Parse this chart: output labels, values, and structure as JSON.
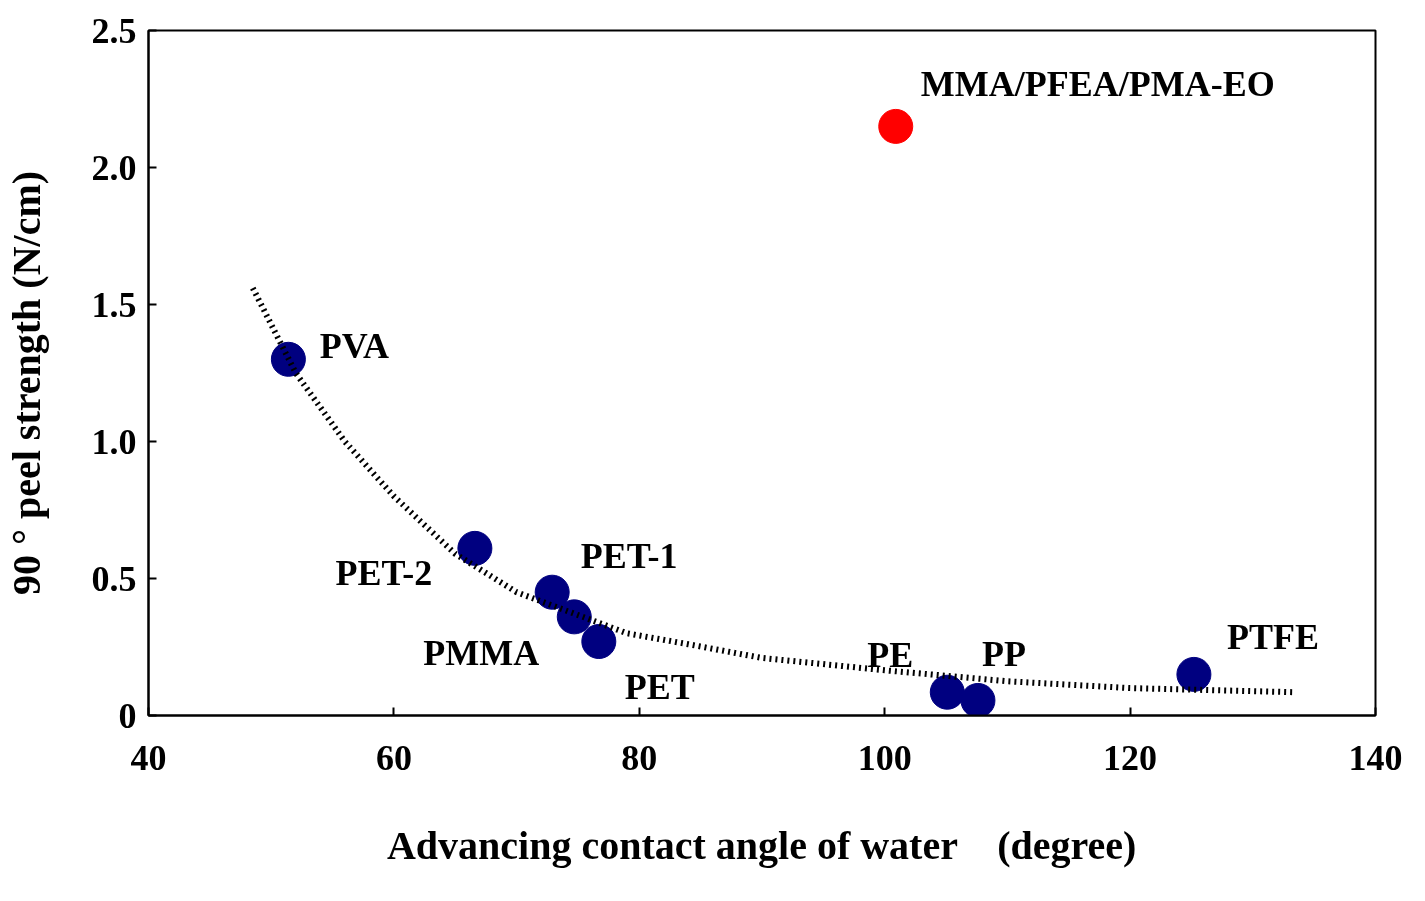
{
  "chart_data": {
    "type": "scatter",
    "xlabel": "Advancing contact angle of water　(degree)",
    "ylabel": "90 ° peel  strength  (N/cm)",
    "xlim": [
      40,
      140
    ],
    "xticks": [
      40,
      60,
      80,
      100,
      120,
      140
    ],
    "ylim": [
      0,
      2.5
    ],
    "yticks": [
      0,
      0.5,
      {
        "value": 1,
        "label": "1.0"
      },
      1.5,
      {
        "value": 2,
        "label": "2.0"
      },
      2.5
    ],
    "grid": false,
    "series": [
      {
        "type": "line",
        "line_style": "dotted",
        "color": "#000000",
        "x": [
          48.5,
          52,
          56,
          60,
          65,
          70,
          79,
          84,
          90,
          100,
          110,
          120,
          133.4
        ],
        "values": [
          1.56,
          1.25,
          1.0,
          0.8,
          0.59,
          0.45,
          0.3,
          0.26,
          0.21,
          0.165,
          0.125,
          0.1,
          0.085
        ]
      },
      {
        "marker": "circle",
        "color": "#000080",
        "x": [
          51.4,
          66.6,
          72.9,
          74.7,
          76.7,
          105.1,
          107.6,
          125.2
        ],
        "values": [
          1.3,
          0.61,
          0.45,
          0.36,
          0.27,
          0.085,
          0.055,
          0.15
        ]
      },
      {
        "marker": "circle",
        "color": "#ff0000",
        "x": [
          100.9
        ],
        "values": [
          2.15
        ]
      }
    ],
    "annotations": [
      {
        "text": "MMA/PFEA/PMA-EO",
        "x": 100.9,
        "y": 2.15
      },
      {
        "text": "PVA",
        "x": 51.4,
        "y": 1.3
      },
      {
        "text": "PET-2",
        "x": 66.6,
        "y": 0.61
      },
      {
        "text": "PET-1",
        "x": 72.9,
        "y": 0.45
      },
      {
        "text": "PMMA",
        "x": 74.7,
        "y": 0.36
      },
      {
        "text": "PET",
        "x": 76.7,
        "y": 0.27
      },
      {
        "text": "PE",
        "x": 105.1,
        "y": 0.085
      },
      {
        "text": "PP",
        "x": 107.6,
        "y": 0.055
      },
      {
        "text": "PTFE",
        "x": 125.2,
        "y": 0.15
      }
    ]
  }
}
